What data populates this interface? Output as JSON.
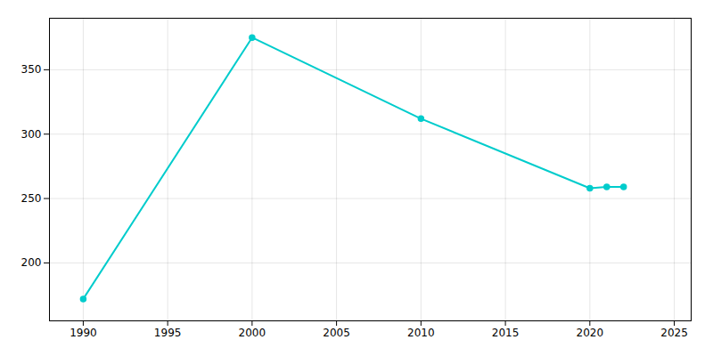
{
  "chart_data": {
    "type": "line",
    "x": [
      1990,
      2000,
      2010,
      2020,
      2021,
      2022
    ],
    "values": [
      172,
      375,
      312,
      258,
      259,
      259
    ],
    "color": "#00CCCC",
    "marker": "circle",
    "xlim": [
      1988,
      2026
    ],
    "ylim": [
      155,
      390
    ],
    "xticks": [
      1990,
      1995,
      2000,
      2005,
      2010,
      2015,
      2020,
      2025
    ],
    "yticks": [
      200,
      250,
      300,
      350
    ],
    "grid": true
  }
}
